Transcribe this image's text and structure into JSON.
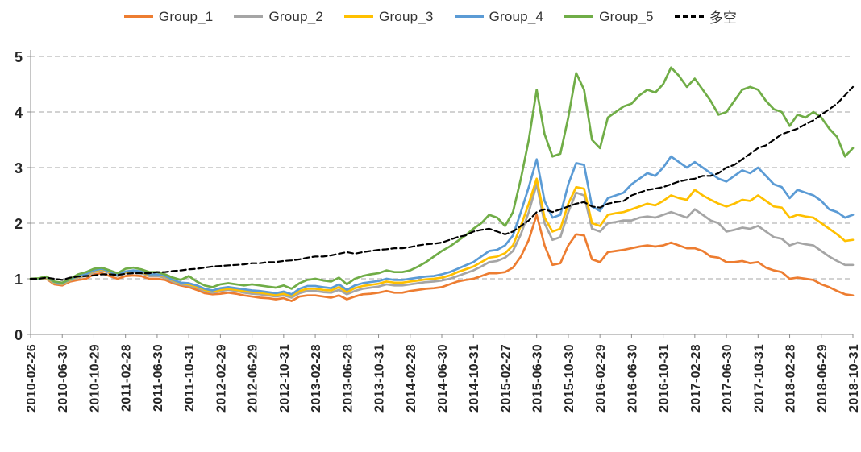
{
  "colors": {
    "gridline": "#A6A6A6",
    "axis": "#8C8C8C",
    "tick_label": "#262626"
  },
  "chart_data": {
    "type": "line",
    "title": "",
    "xlabel": "",
    "ylabel": "",
    "grid": true,
    "legend_position": "top",
    "x_label_interval": 4,
    "y_axis": {
      "min": 0,
      "max": 5,
      "step": 1,
      "ticks": [
        "0",
        "1",
        "2",
        "3",
        "4",
        "5"
      ]
    },
    "x": [
      "2010-02-26",
      "2010-03-31",
      "2010-04-30",
      "2010-05-31",
      "2010-06-30",
      "2010-07-30",
      "2010-08-31",
      "2010-09-30",
      "2010-10-29",
      "2010-11-30",
      "2010-12-31",
      "2011-01-31",
      "2011-02-28",
      "2011-03-31",
      "2011-04-29",
      "2011-05-31",
      "2011-06-30",
      "2011-07-29",
      "2011-08-31",
      "2011-09-30",
      "2011-10-31",
      "2011-11-30",
      "2011-12-30",
      "2012-01-31",
      "2012-02-29",
      "2012-03-30",
      "2012-04-27",
      "2012-05-31",
      "2012-06-29",
      "2012-07-31",
      "2012-08-31",
      "2012-09-28",
      "2012-10-31",
      "2012-11-30",
      "2012-12-31",
      "2013-01-31",
      "2013-02-28",
      "2013-03-29",
      "2013-04-26",
      "2013-05-31",
      "2013-06-28",
      "2013-07-31",
      "2013-08-30",
      "2013-09-30",
      "2013-10-31",
      "2013-11-29",
      "2013-12-31",
      "2014-01-30",
      "2014-02-28",
      "2014-03-31",
      "2014-04-30",
      "2014-05-30",
      "2014-06-30",
      "2014-07-31",
      "2014-08-29",
      "2014-09-30",
      "2014-10-31",
      "2014-11-28",
      "2014-12-31",
      "2015-01-30",
      "2015-02-27",
      "2015-03-31",
      "2015-04-30",
      "2015-05-29",
      "2015-06-30",
      "2015-07-31",
      "2015-08-31",
      "2015-09-30",
      "2015-10-30",
      "2015-11-30",
      "2015-12-31",
      "2016-01-29",
      "2016-02-29",
      "2016-03-31",
      "2016-04-29",
      "2016-05-31",
      "2016-06-30",
      "2016-07-29",
      "2016-08-31",
      "2016-09-30",
      "2016-10-31",
      "2016-11-30",
      "2016-12-30",
      "2017-01-26",
      "2017-02-28",
      "2017-03-31",
      "2017-04-28",
      "2017-05-31",
      "2017-06-30",
      "2017-07-31",
      "2017-08-31",
      "2017-09-29",
      "2017-10-31",
      "2017-11-30",
      "2017-12-29",
      "2018-01-31",
      "2018-02-28",
      "2018-03-30",
      "2018-04-27",
      "2018-05-31",
      "2018-06-29",
      "2018-07-31",
      "2018-08-31",
      "2018-09-28",
      "2018-10-31"
    ],
    "series": [
      {
        "name": "Group_1",
        "color": "#ED7D31",
        "dash": false,
        "values": [
          1.0,
          0.99,
          1.0,
          0.9,
          0.88,
          0.95,
          0.98,
          1.0,
          1.08,
          1.1,
          1.05,
          1.0,
          1.05,
          1.06,
          1.05,
          1.0,
          1.0,
          0.98,
          0.92,
          0.88,
          0.85,
          0.8,
          0.74,
          0.72,
          0.73,
          0.75,
          0.73,
          0.7,
          0.68,
          0.66,
          0.65,
          0.63,
          0.65,
          0.6,
          0.68,
          0.7,
          0.7,
          0.68,
          0.66,
          0.7,
          0.63,
          0.68,
          0.72,
          0.73,
          0.75,
          0.78,
          0.75,
          0.75,
          0.78,
          0.8,
          0.82,
          0.83,
          0.85,
          0.9,
          0.95,
          0.98,
          1.0,
          1.05,
          1.1,
          1.1,
          1.12,
          1.2,
          1.4,
          1.7,
          2.15,
          1.6,
          1.25,
          1.28,
          1.6,
          1.8,
          1.78,
          1.35,
          1.3,
          1.48,
          1.5,
          1.52,
          1.55,
          1.58,
          1.6,
          1.58,
          1.6,
          1.65,
          1.6,
          1.55,
          1.55,
          1.5,
          1.4,
          1.38,
          1.3,
          1.3,
          1.32,
          1.28,
          1.3,
          1.2,
          1.15,
          1.12,
          1.0,
          1.02,
          1.0,
          0.98,
          0.9,
          0.85,
          0.78,
          0.72,
          0.7
        ]
      },
      {
        "name": "Group_2",
        "color": "#A5A5A5",
        "dash": false,
        "values": [
          1.0,
          0.99,
          1.01,
          0.92,
          0.9,
          0.97,
          1.02,
          1.05,
          1.12,
          1.15,
          1.1,
          1.05,
          1.1,
          1.12,
          1.1,
          1.05,
          1.05,
          1.02,
          0.95,
          0.9,
          0.88,
          0.84,
          0.78,
          0.75,
          0.78,
          0.8,
          0.78,
          0.75,
          0.73,
          0.72,
          0.7,
          0.68,
          0.7,
          0.66,
          0.74,
          0.78,
          0.78,
          0.76,
          0.75,
          0.8,
          0.72,
          0.78,
          0.82,
          0.84,
          0.86,
          0.9,
          0.88,
          0.88,
          0.9,
          0.92,
          0.94,
          0.95,
          0.97,
          1.0,
          1.05,
          1.1,
          1.15,
          1.22,
          1.3,
          1.32,
          1.38,
          1.5,
          1.8,
          2.2,
          2.7,
          2.0,
          1.7,
          1.75,
          2.2,
          2.55,
          2.5,
          1.9,
          1.85,
          2.0,
          2.02,
          2.05,
          2.05,
          2.1,
          2.12,
          2.1,
          2.15,
          2.2,
          2.15,
          2.1,
          2.25,
          2.15,
          2.05,
          2.0,
          1.85,
          1.88,
          1.92,
          1.9,
          1.95,
          1.85,
          1.75,
          1.72,
          1.6,
          1.65,
          1.62,
          1.6,
          1.5,
          1.4,
          1.32,
          1.25,
          1.25
        ]
      },
      {
        "name": "Group_3",
        "color": "#FFC000",
        "dash": false,
        "values": [
          1.0,
          1.0,
          1.02,
          0.93,
          0.91,
          0.98,
          1.04,
          1.07,
          1.14,
          1.17,
          1.12,
          1.06,
          1.12,
          1.14,
          1.12,
          1.07,
          1.07,
          1.04,
          0.97,
          0.92,
          0.9,
          0.86,
          0.8,
          0.77,
          0.8,
          0.82,
          0.8,
          0.78,
          0.76,
          0.75,
          0.73,
          0.71,
          0.73,
          0.69,
          0.78,
          0.82,
          0.82,
          0.8,
          0.79,
          0.85,
          0.76,
          0.83,
          0.87,
          0.89,
          0.91,
          0.95,
          0.93,
          0.93,
          0.95,
          0.97,
          0.99,
          1.0,
          1.02,
          1.06,
          1.12,
          1.17,
          1.22,
          1.3,
          1.38,
          1.4,
          1.46,
          1.6,
          1.95,
          2.35,
          2.8,
          2.1,
          1.85,
          1.9,
          2.35,
          2.65,
          2.62,
          2.0,
          1.95,
          2.15,
          2.18,
          2.2,
          2.25,
          2.3,
          2.35,
          2.32,
          2.4,
          2.5,
          2.45,
          2.42,
          2.6,
          2.5,
          2.42,
          2.35,
          2.3,
          2.35,
          2.42,
          2.4,
          2.5,
          2.4,
          2.3,
          2.28,
          2.1,
          2.15,
          2.12,
          2.1,
          2.0,
          1.9,
          1.8,
          1.68,
          1.7
        ]
      },
      {
        "name": "Group_4",
        "color": "#5B9BD5",
        "dash": false,
        "values": [
          1.0,
          1.0,
          1.03,
          0.94,
          0.92,
          0.99,
          1.05,
          1.08,
          1.15,
          1.18,
          1.13,
          1.07,
          1.13,
          1.15,
          1.13,
          1.08,
          1.08,
          1.05,
          0.98,
          0.93,
          0.92,
          0.88,
          0.82,
          0.79,
          0.83,
          0.85,
          0.83,
          0.81,
          0.79,
          0.78,
          0.76,
          0.74,
          0.77,
          0.72,
          0.82,
          0.87,
          0.87,
          0.85,
          0.83,
          0.9,
          0.8,
          0.88,
          0.92,
          0.94,
          0.96,
          1.0,
          0.98,
          0.98,
          1.0,
          1.02,
          1.04,
          1.05,
          1.08,
          1.12,
          1.18,
          1.24,
          1.3,
          1.4,
          1.5,
          1.52,
          1.6,
          1.78,
          2.2,
          2.65,
          3.15,
          2.4,
          2.1,
          2.15,
          2.7,
          3.08,
          3.05,
          2.3,
          2.22,
          2.45,
          2.5,
          2.55,
          2.7,
          2.8,
          2.9,
          2.85,
          3.0,
          3.2,
          3.1,
          3.0,
          3.1,
          3.0,
          2.9,
          2.8,
          2.75,
          2.85,
          2.95,
          2.9,
          3.0,
          2.85,
          2.7,
          2.65,
          2.45,
          2.6,
          2.55,
          2.5,
          2.4,
          2.25,
          2.2,
          2.1,
          2.15
        ]
      },
      {
        "name": "Group_5",
        "color": "#70AD47",
        "dash": false,
        "values": [
          1.0,
          1.01,
          1.04,
          0.95,
          0.93,
          1.0,
          1.08,
          1.12,
          1.18,
          1.2,
          1.15,
          1.1,
          1.18,
          1.2,
          1.17,
          1.12,
          1.12,
          1.08,
          1.02,
          0.98,
          1.05,
          0.95,
          0.88,
          0.85,
          0.9,
          0.92,
          0.9,
          0.88,
          0.9,
          0.88,
          0.86,
          0.84,
          0.88,
          0.82,
          0.92,
          0.98,
          1.0,
          0.97,
          0.95,
          1.02,
          0.9,
          1.0,
          1.05,
          1.08,
          1.1,
          1.15,
          1.12,
          1.12,
          1.15,
          1.22,
          1.3,
          1.4,
          1.5,
          1.58,
          1.68,
          1.78,
          1.9,
          2.0,
          2.15,
          2.1,
          1.95,
          2.2,
          2.8,
          3.5,
          4.4,
          3.6,
          3.2,
          3.25,
          3.9,
          4.7,
          4.4,
          3.5,
          3.35,
          3.9,
          4.0,
          4.1,
          4.15,
          4.3,
          4.4,
          4.35,
          4.5,
          4.8,
          4.65,
          4.45,
          4.6,
          4.4,
          4.2,
          3.95,
          4.0,
          4.2,
          4.4,
          4.45,
          4.4,
          4.2,
          4.05,
          4.0,
          3.75,
          3.95,
          3.9,
          4.0,
          3.9,
          3.7,
          3.55,
          3.2,
          3.35
        ]
      },
      {
        "name": "多空",
        "color": "#000000",
        "dash": true,
        "values": [
          1.0,
          1.0,
          1.02,
          1.0,
          0.98,
          1.02,
          1.04,
          1.05,
          1.06,
          1.08,
          1.08,
          1.07,
          1.09,
          1.1,
          1.1,
          1.1,
          1.12,
          1.12,
          1.14,
          1.15,
          1.17,
          1.18,
          1.2,
          1.22,
          1.23,
          1.24,
          1.25,
          1.26,
          1.28,
          1.28,
          1.3,
          1.3,
          1.32,
          1.33,
          1.35,
          1.38,
          1.4,
          1.4,
          1.42,
          1.45,
          1.48,
          1.45,
          1.48,
          1.5,
          1.52,
          1.53,
          1.55,
          1.55,
          1.57,
          1.6,
          1.62,
          1.63,
          1.65,
          1.7,
          1.75,
          1.78,
          1.85,
          1.88,
          1.9,
          1.85,
          1.8,
          1.85,
          1.95,
          2.05,
          2.2,
          2.25,
          2.2,
          2.25,
          2.3,
          2.35,
          2.38,
          2.3,
          2.28,
          2.35,
          2.38,
          2.4,
          2.5,
          2.55,
          2.6,
          2.62,
          2.65,
          2.7,
          2.75,
          2.78,
          2.8,
          2.85,
          2.85,
          2.9,
          3.0,
          3.05,
          3.15,
          3.25,
          3.35,
          3.4,
          3.5,
          3.6,
          3.65,
          3.7,
          3.78,
          3.85,
          3.95,
          4.05,
          4.15,
          4.3,
          4.45
        ]
      }
    ]
  }
}
